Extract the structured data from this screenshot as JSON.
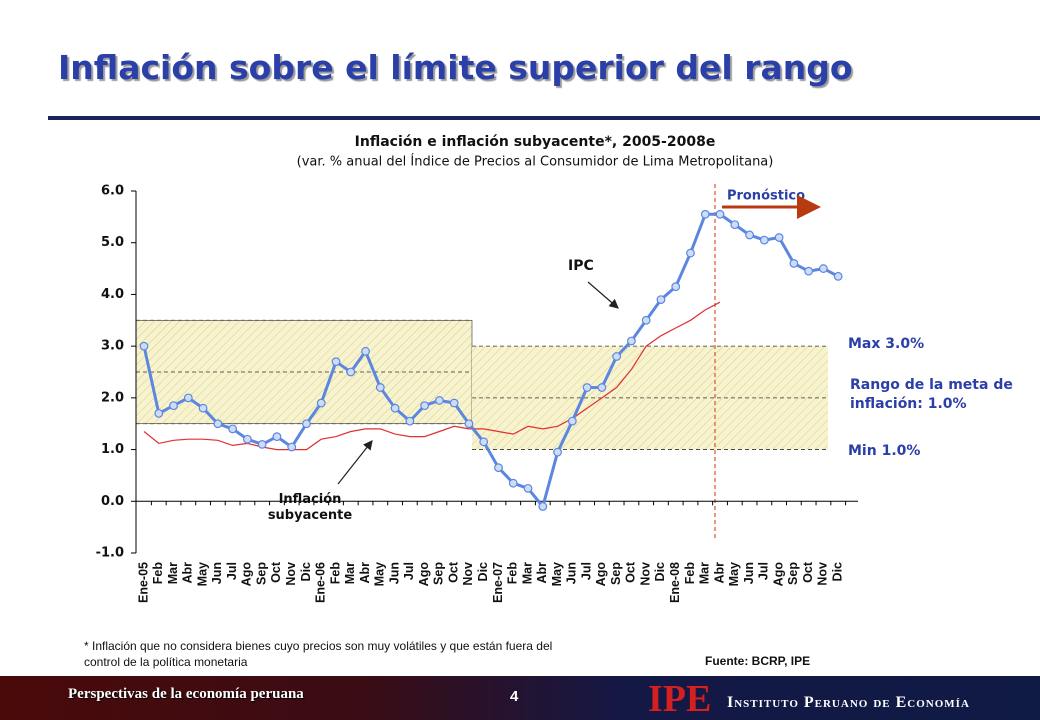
{
  "header": {
    "title": "Inflación sobre el límite superior del rango"
  },
  "chart_data": {
    "type": "line",
    "title": "Inflación e inflación subyacente*, 2005-2008e",
    "subtitle": "(var. % anual del Índice de Precios al Consumidor de Lima Metropolitana)",
    "categories": [
      "Ene-05",
      "Feb",
      "Mar",
      "Abr",
      "May",
      "Jun",
      "Jul",
      "Ago",
      "Sep",
      "Oct",
      "Nov",
      "Dic",
      "Ene-06",
      "Feb",
      "Mar",
      "Abr",
      "May",
      "Jun",
      "Jul",
      "Ago",
      "Sep",
      "Oct",
      "Nov",
      "Dic",
      "Ene-07",
      "Feb",
      "Mar",
      "Abr",
      "May",
      "Jun",
      "Jul",
      "Ago",
      "Sep",
      "Oct",
      "Nov",
      "Dic",
      "Ene-08",
      "Feb",
      "Mar",
      "Abr",
      "May",
      "Jun",
      "Jul",
      "Ago",
      "Sep",
      "Oct",
      "Nov",
      "Dic"
    ],
    "series": [
      {
        "name": "IPC",
        "color": "#5b87e0",
        "values": [
          3.0,
          1.7,
          1.85,
          2.0,
          1.8,
          1.5,
          1.4,
          1.2,
          1.1,
          1.25,
          1.05,
          1.5,
          1.9,
          2.7,
          2.5,
          2.9,
          2.2,
          1.8,
          1.55,
          1.85,
          1.95,
          1.9,
          1.5,
          1.15,
          0.65,
          0.35,
          0.25,
          -0.1,
          0.95,
          1.55,
          2.2,
          2.2,
          2.8,
          3.1,
          3.5,
          3.9,
          4.15,
          4.8,
          5.55,
          5.55,
          5.35,
          5.15,
          5.05,
          5.1,
          4.6,
          4.45,
          4.5,
          4.35
        ]
      },
      {
        "name": "Inflación subyacente",
        "color": "#e03030",
        "values": [
          1.35,
          1.12,
          1.18,
          1.2,
          1.2,
          1.18,
          1.08,
          1.12,
          1.05,
          1.0,
          1.0,
          1.0,
          1.2,
          1.25,
          1.35,
          1.4,
          1.4,
          1.3,
          1.25,
          1.25,
          1.35,
          1.45,
          1.4,
          1.4,
          1.35,
          1.3,
          1.45,
          1.4,
          1.45,
          1.6,
          1.8,
          2.0,
          2.2,
          2.55,
          3.0,
          3.2,
          3.35,
          3.5,
          3.7,
          3.85,
          null,
          null,
          null,
          null,
          null,
          null,
          null,
          null
        ]
      }
    ],
    "target_bands": [
      {
        "low": 1.5,
        "mid": 2.5,
        "high": 3.5
      },
      {
        "low": 1.0,
        "mid": 2.0,
        "high": 3.0
      }
    ],
    "ylim": [
      -1,
      6
    ],
    "yticks": [
      {
        "value": -1,
        "label": "-1.0"
      },
      {
        "value": 0,
        "label": "0.0"
      },
      {
        "value": 1,
        "label": "1.0"
      },
      {
        "value": 2,
        "label": "2.0"
      },
      {
        "value": 3,
        "label": "3.0"
      },
      {
        "value": 4,
        "label": "4.0"
      },
      {
        "value": 5,
        "label": "5.0"
      },
      {
        "value": 6,
        "label": "6.0"
      }
    ],
    "annotations": {
      "forecast": "Pronóstico",
      "max": "Max 3.0%",
      "range": "Rango de la meta de inflación: 1.0%",
      "min": "Min 1.0%"
    }
  },
  "footnote": "* Inflación que no considera bienes cuyo precios son muy volátiles y que están fuera del control de la política monetaria",
  "source": "Fuente: BCRP, IPE",
  "footer": {
    "left": "Perspectivas de la economía peruana",
    "page": "4",
    "logo": "IPE",
    "institute": "Instituto Peruano de Economía"
  }
}
